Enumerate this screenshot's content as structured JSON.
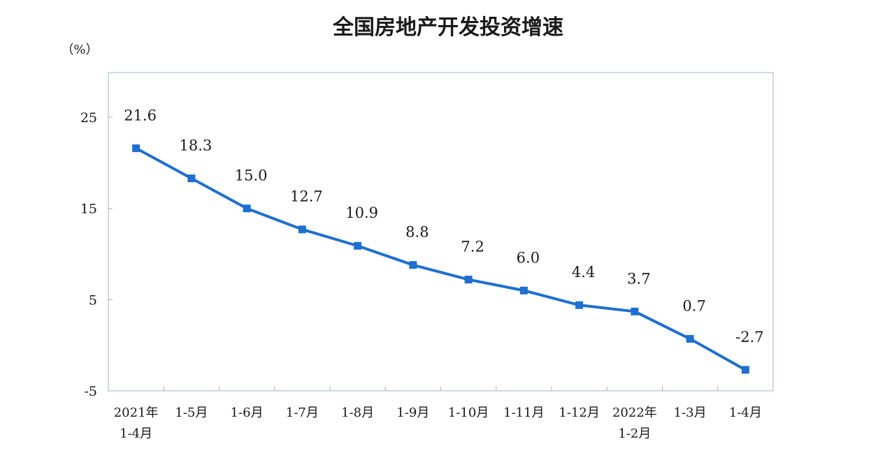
{
  "chart_data": {
    "type": "line",
    "title": "全国房地产开发投资增速",
    "ylabel": "（%）",
    "xlabel": "",
    "categories": [
      [
        "2021年",
        "1-4月"
      ],
      [
        "1-5月"
      ],
      [
        "1-6月"
      ],
      [
        "1-7月"
      ],
      [
        "1-8月"
      ],
      [
        "1-9月"
      ],
      [
        "1-10月"
      ],
      [
        "1-11月"
      ],
      [
        "1-12月"
      ],
      [
        "2022年",
        "1-2月"
      ],
      [
        "1-3月"
      ],
      [
        "1-4月"
      ]
    ],
    "series": [
      {
        "values": [
          21.6,
          18.3,
          15.0,
          12.7,
          10.9,
          8.8,
          7.2,
          6.0,
          4.4,
          3.7,
          0.7,
          -2.7
        ],
        "labels": [
          "21.6",
          "18.3",
          "15.0",
          "12.7",
          "10.9",
          "8.8",
          "7.2",
          "6.0",
          "4.4",
          "3.7",
          "0.7",
          "-2.7"
        ]
      }
    ],
    "ylim": [
      -5,
      30
    ],
    "yticks": [
      -5,
      5,
      15,
      25
    ],
    "grid": false,
    "legend": "none",
    "colors": {
      "line": "#1f6fd1",
      "marker": "#1f6fd1",
      "axis": "#9fb3cc",
      "frame": "#9fb3cc"
    }
  }
}
